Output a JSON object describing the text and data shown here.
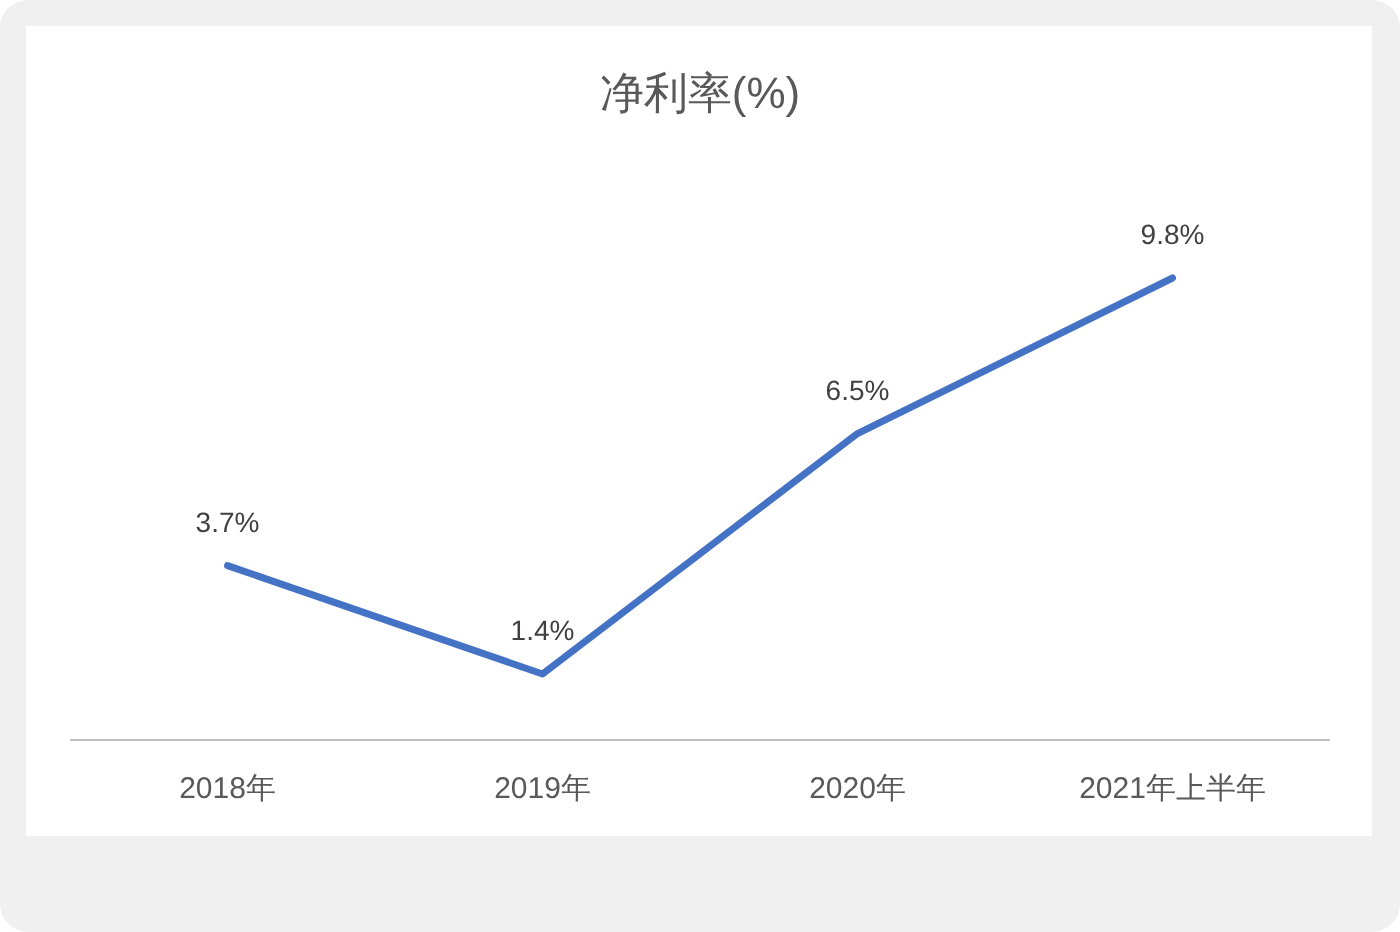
{
  "chart_data": {
    "type": "line",
    "title": "净利率(%)",
    "categories": [
      "2018年",
      "2019年",
      "2020年",
      "2021年上半年"
    ],
    "values": [
      3.7,
      1.4,
      6.5,
      9.8
    ],
    "color": "#4472c4",
    "value_labels": [
      "3.7%",
      "1.4%",
      "6.5%",
      "9.8%"
    ]
  }
}
